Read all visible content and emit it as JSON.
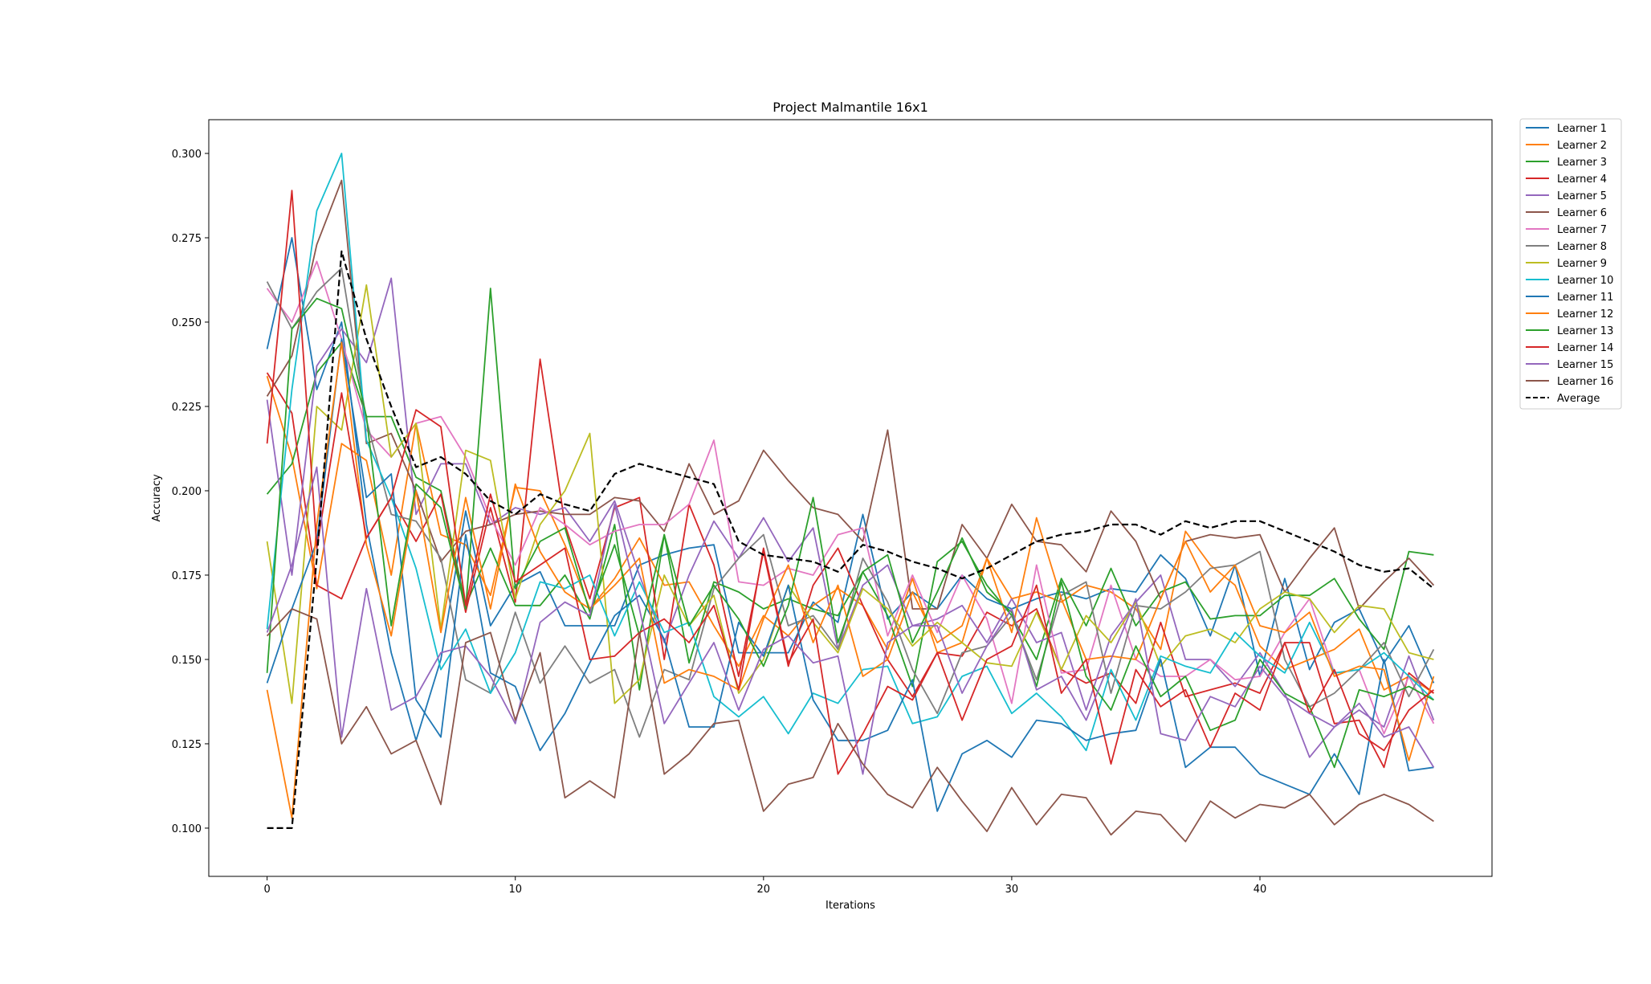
{
  "chart_data": {
    "type": "line",
    "title": "Project Malmantile 16x1",
    "xlabel": "Iterations",
    "ylabel": "Accuracy",
    "xlim": [
      -2.35,
      49.35
    ],
    "ylim": [
      0.0857,
      0.31
    ],
    "xticks": [
      0,
      10,
      20,
      30,
      40
    ],
    "yticks": [
      0.1,
      0.125,
      0.15,
      0.175,
      0.2,
      0.225,
      0.25,
      0.275,
      0.3
    ],
    "ytick_labels": [
      "0.100",
      "0.125",
      "0.150",
      "0.175",
      "0.200",
      "0.225",
      "0.250",
      "0.275",
      "0.300"
    ],
    "grid": false,
    "legend_position": "outside-top-right",
    "x": [
      0,
      1,
      2,
      3,
      4,
      5,
      6,
      7,
      8,
      9,
      10,
      11,
      12,
      13,
      14,
      15,
      16,
      17,
      18,
      19,
      20,
      21,
      22,
      23,
      24,
      25,
      26,
      27,
      28,
      29,
      30,
      31,
      32,
      33,
      34,
      35,
      36,
      37,
      38,
      39,
      40,
      41,
      42,
      43,
      44,
      45,
      46,
      47
    ],
    "series": [
      {
        "name": "Learner 1",
        "color": "#1f77b4",
        "values": [
          0.242,
          0.275,
          0.23,
          0.25,
          0.19,
          0.152,
          0.126,
          0.15,
          0.194,
          0.16,
          0.172,
          0.176,
          0.16,
          0.16,
          0.16,
          0.178,
          0.181,
          0.183,
          0.184,
          0.152,
          0.152,
          0.152,
          0.167,
          0.161,
          0.193,
          0.162,
          0.17,
          0.165,
          0.175,
          0.168,
          0.165,
          0.168,
          0.17,
          0.168,
          0.171,
          0.17,
          0.181,
          0.174,
          0.157,
          0.178,
          0.145,
          0.174,
          0.147,
          0.161,
          0.165,
          0.149,
          0.16,
          0.143
        ]
      },
      {
        "name": "Learner 2",
        "color": "#ff7f0e",
        "values": [
          0.234,
          0.21,
          0.171,
          0.214,
          0.209,
          0.175,
          0.22,
          0.187,
          0.184,
          0.169,
          0.201,
          0.2,
          0.184,
          0.165,
          0.174,
          0.186,
          0.172,
          0.173,
          0.16,
          0.148,
          0.163,
          0.157,
          0.166,
          0.171,
          0.166,
          0.153,
          0.174,
          0.152,
          0.155,
          0.18,
          0.168,
          0.17,
          0.167,
          0.172,
          0.17,
          0.165,
          0.153,
          0.188,
          0.178,
          0.172,
          0.154,
          0.147,
          0.15,
          0.153,
          0.159,
          0.141,
          0.145,
          0.14
        ]
      },
      {
        "name": "Learner 3",
        "color": "#2ca02c",
        "values": [
          0.199,
          0.208,
          0.235,
          0.244,
          0.222,
          0.222,
          0.204,
          0.2,
          0.166,
          0.183,
          0.166,
          0.166,
          0.175,
          0.162,
          0.19,
          0.141,
          0.187,
          0.149,
          0.173,
          0.17,
          0.165,
          0.168,
          0.165,
          0.163,
          0.176,
          0.163,
          0.142,
          0.179,
          0.185,
          0.172,
          0.163,
          0.15,
          0.174,
          0.16,
          0.177,
          0.16,
          0.17,
          0.173,
          0.162,
          0.163,
          0.163,
          0.169,
          0.169,
          0.174,
          0.162,
          0.153,
          0.182,
          0.181
        ]
      },
      {
        "name": "Learner 4",
        "color": "#d62728",
        "values": [
          0.235,
          0.223,
          0.172,
          0.168,
          0.186,
          0.198,
          0.185,
          0.199,
          0.164,
          0.195,
          0.167,
          0.239,
          0.19,
          0.168,
          0.195,
          0.198,
          0.15,
          0.196,
          0.178,
          0.145,
          0.182,
          0.148,
          0.172,
          0.183,
          0.166,
          0.15,
          0.139,
          0.152,
          0.151,
          0.164,
          0.16,
          0.165,
          0.147,
          0.143,
          0.146,
          0.137,
          0.161,
          0.139,
          0.141,
          0.143,
          0.14,
          0.155,
          0.155,
          0.131,
          0.132,
          0.118,
          0.146,
          0.14
        ]
      },
      {
        "name": "Learner 5",
        "color": "#9467bd",
        "values": [
          0.227,
          0.175,
          0.237,
          0.248,
          0.238,
          0.263,
          0.193,
          0.208,
          0.208,
          0.19,
          0.195,
          0.193,
          0.195,
          0.185,
          0.197,
          0.175,
          0.155,
          0.175,
          0.191,
          0.18,
          0.192,
          0.179,
          0.189,
          0.153,
          0.172,
          0.178,
          0.16,
          0.162,
          0.166,
          0.155,
          0.168,
          0.155,
          0.158,
          0.135,
          0.157,
          0.167,
          0.175,
          0.15,
          0.15,
          0.142,
          0.152,
          0.14,
          0.121,
          0.13,
          0.135,
          0.13,
          0.151,
          0.132
        ]
      },
      {
        "name": "Learner 6",
        "color": "#8c564b",
        "values": [
          0.228,
          0.24,
          0.273,
          0.292,
          0.214,
          0.217,
          0.2,
          0.179,
          0.188,
          0.19,
          0.193,
          0.194,
          0.193,
          0.193,
          0.198,
          0.197,
          0.188,
          0.208,
          0.193,
          0.197,
          0.212,
          0.203,
          0.195,
          0.193,
          0.185,
          0.218,
          0.165,
          0.165,
          0.19,
          0.18,
          0.196,
          0.185,
          0.184,
          0.176,
          0.194,
          0.185,
          0.168,
          0.185,
          0.187,
          0.186,
          0.187,
          0.17,
          0.18,
          0.189,
          0.165,
          0.173,
          0.18,
          0.172
        ]
      },
      {
        "name": "Learner 7",
        "color": "#e377c2",
        "values": [
          0.26,
          0.25,
          0.268,
          0.245,
          0.218,
          0.21,
          0.22,
          0.222,
          0.21,
          0.192,
          0.178,
          0.195,
          0.19,
          0.184,
          0.188,
          0.19,
          0.19,
          0.196,
          0.215,
          0.173,
          0.172,
          0.177,
          0.175,
          0.187,
          0.189,
          0.157,
          0.175,
          0.158,
          0.175,
          0.162,
          0.137,
          0.178,
          0.146,
          0.147,
          0.172,
          0.15,
          0.145,
          0.145,
          0.15,
          0.144,
          0.145,
          0.158,
          0.168,
          0.146,
          0.147,
          0.128,
          0.145,
          0.131
        ]
      },
      {
        "name": "Learner 8",
        "color": "#7f7f7f",
        "values": [
          0.262,
          0.248,
          0.259,
          0.266,
          0.221,
          0.193,
          0.191,
          0.18,
          0.144,
          0.14,
          0.164,
          0.143,
          0.154,
          0.143,
          0.147,
          0.127,
          0.147,
          0.144,
          0.171,
          0.18,
          0.187,
          0.16,
          0.163,
          0.153,
          0.18,
          0.167,
          0.147,
          0.134,
          0.152,
          0.154,
          0.163,
          0.144,
          0.169,
          0.173,
          0.14,
          0.166,
          0.165,
          0.17,
          0.177,
          0.178,
          0.182,
          0.15,
          0.136,
          0.14,
          0.147,
          0.155,
          0.139,
          0.153
        ]
      },
      {
        "name": "Learner 9",
        "color": "#bcbd22",
        "values": [
          0.185,
          0.137,
          0.225,
          0.218,
          0.261,
          0.21,
          0.22,
          0.159,
          0.212,
          0.209,
          0.168,
          0.19,
          0.2,
          0.217,
          0.137,
          0.144,
          0.175,
          0.16,
          0.169,
          0.14,
          0.15,
          0.172,
          0.161,
          0.152,
          0.171,
          0.165,
          0.154,
          0.161,
          0.155,
          0.149,
          0.148,
          0.164,
          0.147,
          0.163,
          0.155,
          0.167,
          0.148,
          0.157,
          0.159,
          0.155,
          0.165,
          0.17,
          0.168,
          0.158,
          0.166,
          0.165,
          0.152,
          0.15
        ]
      },
      {
        "name": "Learner 10",
        "color": "#17becf",
        "values": [
          0.159,
          0.23,
          0.283,
          0.3,
          0.215,
          0.198,
          0.177,
          0.147,
          0.159,
          0.14,
          0.152,
          0.173,
          0.171,
          0.175,
          0.157,
          0.173,
          0.158,
          0.161,
          0.139,
          0.133,
          0.139,
          0.128,
          0.14,
          0.137,
          0.147,
          0.148,
          0.131,
          0.133,
          0.145,
          0.148,
          0.134,
          0.14,
          0.133,
          0.123,
          0.147,
          0.132,
          0.151,
          0.148,
          0.146,
          0.158,
          0.151,
          0.146,
          0.161,
          0.146,
          0.147,
          0.152,
          0.145,
          0.138
        ]
      },
      {
        "name": "Learner 11",
        "color": "#1f77b4",
        "values": [
          0.143,
          0.165,
          0.185,
          0.245,
          0.198,
          0.205,
          0.138,
          0.127,
          0.187,
          0.146,
          0.142,
          0.123,
          0.134,
          0.149,
          0.163,
          0.169,
          0.156,
          0.13,
          0.13,
          0.161,
          0.151,
          0.172,
          0.138,
          0.126,
          0.126,
          0.129,
          0.144,
          0.105,
          0.122,
          0.126,
          0.121,
          0.132,
          0.131,
          0.126,
          0.128,
          0.129,
          0.15,
          0.118,
          0.124,
          0.124,
          0.116,
          0.113,
          0.11,
          0.122,
          0.11,
          0.15,
          0.117,
          0.118
        ]
      },
      {
        "name": "Learner 12",
        "color": "#ff7f0e",
        "values": [
          0.141,
          0.103,
          0.19,
          0.244,
          0.184,
          0.157,
          0.2,
          0.158,
          0.198,
          0.165,
          0.202,
          0.182,
          0.17,
          0.165,
          0.172,
          0.18,
          0.143,
          0.147,
          0.145,
          0.141,
          0.162,
          0.178,
          0.155,
          0.172,
          0.145,
          0.15,
          0.17,
          0.155,
          0.16,
          0.18,
          0.158,
          0.192,
          0.168,
          0.15,
          0.151,
          0.15,
          0.168,
          0.185,
          0.17,
          0.178,
          0.16,
          0.158,
          0.164,
          0.145,
          0.148,
          0.147,
          0.12,
          0.145
        ]
      },
      {
        "name": "Learner 13",
        "color": "#2ca02c",
        "values": [
          0.146,
          0.248,
          0.257,
          0.254,
          0.222,
          0.16,
          0.202,
          0.195,
          0.165,
          0.26,
          0.171,
          0.185,
          0.189,
          0.164,
          0.184,
          0.157,
          0.187,
          0.16,
          0.172,
          0.162,
          0.148,
          0.166,
          0.198,
          0.155,
          0.176,
          0.181,
          0.155,
          0.17,
          0.186,
          0.17,
          0.164,
          0.142,
          0.173,
          0.145,
          0.135,
          0.154,
          0.139,
          0.145,
          0.129,
          0.132,
          0.15,
          0.14,
          0.136,
          0.118,
          0.141,
          0.139,
          0.142,
          0.138
        ]
      },
      {
        "name": "Learner 14",
        "color": "#d62728",
        "values": [
          0.214,
          0.289,
          0.183,
          0.229,
          0.186,
          0.198,
          0.224,
          0.219,
          0.166,
          0.199,
          0.173,
          0.178,
          0.183,
          0.15,
          0.151,
          0.158,
          0.162,
          0.155,
          0.166,
          0.141,
          0.183,
          0.149,
          0.162,
          0.116,
          0.128,
          0.142,
          0.138,
          0.152,
          0.132,
          0.15,
          0.154,
          0.172,
          0.14,
          0.15,
          0.119,
          0.147,
          0.136,
          0.141,
          0.124,
          0.14,
          0.135,
          0.155,
          0.134,
          0.147,
          0.128,
          0.123,
          0.135,
          0.141
        ]
      },
      {
        "name": "Learner 15",
        "color": "#9467bd",
        "values": [
          0.158,
          0.178,
          0.207,
          0.127,
          0.171,
          0.135,
          0.139,
          0.152,
          0.154,
          0.145,
          0.131,
          0.161,
          0.167,
          0.163,
          0.196,
          0.165,
          0.131,
          0.143,
          0.155,
          0.135,
          0.153,
          0.157,
          0.149,
          0.151,
          0.116,
          0.155,
          0.16,
          0.16,
          0.14,
          0.154,
          0.165,
          0.141,
          0.145,
          0.132,
          0.15,
          0.168,
          0.128,
          0.126,
          0.139,
          0.136,
          0.148,
          0.139,
          0.134,
          0.13,
          0.137,
          0.127,
          0.13,
          0.118
        ]
      },
      {
        "name": "Learner 16",
        "color": "#8c564b",
        "values": [
          0.157,
          0.165,
          0.162,
          0.125,
          0.136,
          0.122,
          0.126,
          0.107,
          0.155,
          0.158,
          0.132,
          0.152,
          0.109,
          0.114,
          0.109,
          0.158,
          0.116,
          0.122,
          0.131,
          0.132,
          0.105,
          0.113,
          0.115,
          0.131,
          0.119,
          0.11,
          0.106,
          0.118,
          0.108,
          0.099,
          0.112,
          0.101,
          0.11,
          0.109,
          0.098,
          0.105,
          0.104,
          0.096,
          0.108,
          0.103,
          0.107,
          0.106,
          0.11,
          0.101,
          0.107,
          0.11,
          0.107,
          0.102
        ]
      },
      {
        "name": "Average",
        "color": "#000000",
        "dashed": true,
        "values": [
          0.1,
          0.1,
          0.18,
          0.271,
          0.245,
          0.225,
          0.207,
          0.21,
          0.205,
          0.197,
          0.193,
          0.199,
          0.196,
          0.194,
          0.205,
          0.208,
          0.206,
          0.204,
          0.202,
          0.185,
          0.181,
          0.18,
          0.179,
          0.176,
          0.184,
          0.182,
          0.179,
          0.177,
          0.174,
          0.177,
          0.181,
          0.185,
          0.187,
          0.188,
          0.19,
          0.19,
          0.187,
          0.191,
          0.189,
          0.191,
          0.191,
          0.188,
          0.185,
          0.182,
          0.178,
          0.176,
          0.177,
          0.171
        ]
      }
    ]
  }
}
